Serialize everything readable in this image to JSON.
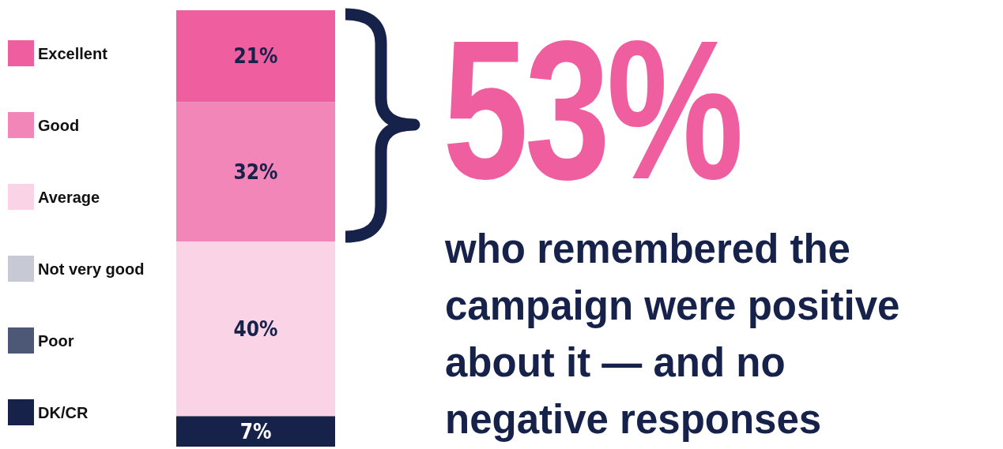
{
  "chart_data": {
    "type": "bar",
    "stacked": true,
    "categories": [
      null
    ],
    "legend": "left",
    "tick_labels": false,
    "series": [
      {
        "name": "DK/CR",
        "color": "#16224a",
        "values": [
          7
        ],
        "value_labels": [
          "7%"
        ]
      },
      {
        "name": "Poor",
        "color": "#4d5877",
        "values": [
          0
        ],
        "value_labels": [
          null
        ]
      },
      {
        "name": "Not very good",
        "color": "#c7c9d5",
        "values": [
          0
        ],
        "value_labels": [
          null
        ]
      },
      {
        "name": "Average",
        "color": "#fad4e6",
        "values": [
          40
        ],
        "value_labels": [
          "40%"
        ]
      },
      {
        "name": "Good",
        "color": "#f386b8",
        "values": [
          32
        ],
        "value_labels": [
          "32%"
        ]
      },
      {
        "name": "Excellent",
        "color": "#ef5fa0",
        "values": [
          21
        ],
        "value_labels": [
          "21%"
        ]
      }
    ],
    "annotations": [
      "53%",
      "who remembered the campaign were positive about it — and no negative responses"
    ]
  }
}
